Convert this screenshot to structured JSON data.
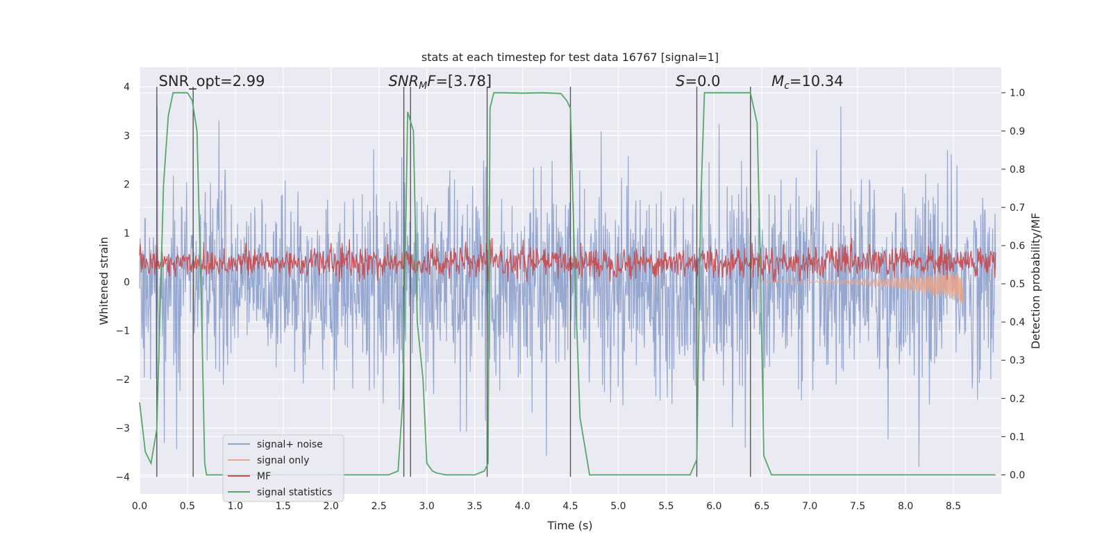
{
  "chart_data": {
    "type": "line",
    "title": "stats at each timestep for test data 16767 [signal=1]",
    "xlabel": "Time (s)",
    "ylabel_left": "Whitened strain",
    "ylabel_right": "Detection probability/MF",
    "xlim": [
      0.0,
      9.0
    ],
    "ylim_left": [
      -4.35,
      4.4
    ],
    "ylim_right": [
      -0.05,
      1.0667
    ],
    "xticks": [
      "0.0",
      "0.5",
      "1.0",
      "1.5",
      "2.0",
      "2.5",
      "3.0",
      "3.5",
      "4.0",
      "4.5",
      "5.0",
      "5.5",
      "6.0",
      "6.5",
      "7.0",
      "7.5",
      "8.0",
      "8.5"
    ],
    "yticks_left": [
      "4",
      "3",
      "2",
      "1",
      "0",
      "−1",
      "−2",
      "−3",
      "−4"
    ],
    "yticks_right": [
      "1.0",
      "0.9",
      "0.8",
      "0.7",
      "0.6",
      "0.5",
      "0.4",
      "0.3",
      "0.2",
      "0.1",
      "0.0"
    ],
    "grid": true,
    "legend_position": "lower-left",
    "legend": [
      "signal+ noise",
      "signal only",
      "MF",
      "signal statistics"
    ],
    "colors": {
      "signal_noise": "#8da0cb",
      "signal_only": "#e8a58b",
      "mf": "#c44e52",
      "statistics": "#55a868",
      "markers": "#555555",
      "background": "#eaeaf2"
    },
    "annotations": [
      {
        "parts": [
          {
            "t": "SNR_opt=2.99",
            "i": false
          }
        ]
      },
      {
        "parts": [
          {
            "t": "SNR",
            "i": true
          },
          {
            "t": "M",
            "i": true,
            "sub": true
          },
          {
            "t": "F",
            "i": true
          },
          {
            "t": "=[3.78]",
            "i": false
          }
        ]
      },
      {
        "parts": [
          {
            "t": "S",
            "i": true
          },
          {
            "t": "=0.0",
            "i": false
          }
        ]
      },
      {
        "parts": [
          {
            "t": "M",
            "i": true
          },
          {
            "t": "c",
            "i": true,
            "sub": true
          },
          {
            "t": "=10.34",
            "i": false
          }
        ]
      }
    ],
    "annotation_x": [
      0.2,
      2.6,
      5.6,
      6.6
    ],
    "vertical_markers": [
      0.18,
      0.56,
      2.76,
      2.83,
      3.63,
      4.5,
      5.82,
      6.38
    ],
    "signal_statistics": {
      "x": [
        0.0,
        0.06,
        0.12,
        0.18,
        0.25,
        0.3,
        0.35,
        0.5,
        0.55,
        0.6,
        0.65,
        0.68,
        0.7,
        0.75,
        0.8,
        1.0,
        2.0,
        2.6,
        2.7,
        2.75,
        2.8,
        2.86,
        2.9,
        2.96,
        3.0,
        3.06,
        3.1,
        3.2,
        3.3,
        3.5,
        3.6,
        3.64,
        3.66,
        3.7,
        3.8,
        4.0,
        4.2,
        4.4,
        4.46,
        4.5,
        4.55,
        4.6,
        4.7,
        5.0,
        5.5,
        5.75,
        5.82,
        5.86,
        5.9,
        6.0,
        6.38,
        6.45,
        6.48,
        6.52,
        6.6,
        7.0,
        8.0,
        8.94
      ],
      "y": [
        0.19,
        0.06,
        0.03,
        0.12,
        0.76,
        0.94,
        1.0,
        1.0,
        0.98,
        0.9,
        0.4,
        0.03,
        0.0,
        0.0,
        0.0,
        0.0,
        0.0,
        0.0,
        0.01,
        0.2,
        0.95,
        0.9,
        0.4,
        0.25,
        0.03,
        0.01,
        0.005,
        0.0,
        0.0,
        0.0,
        0.01,
        0.03,
        0.96,
        1.0,
        1.0,
        0.999,
        1.0,
        0.998,
        0.98,
        0.96,
        0.5,
        0.15,
        0.0,
        0.0,
        0.0,
        0.0,
        0.04,
        0.7,
        1.0,
        1.0,
        1.0,
        0.92,
        0.6,
        0.05,
        0.0,
        0.0,
        0.0,
        0.0
      ]
    },
    "signal_noise": {
      "x_range": [
        0.0,
        8.94
      ],
      "samples": 1800,
      "typical_range": [
        -2.0,
        2.0
      ],
      "peak_range": [
        -4.0,
        3.6
      ]
    },
    "mf": {
      "x_range": [
        0.0,
        8.94
      ],
      "samples": 1400,
      "range": [
        0.0,
        0.9
      ]
    },
    "signal_only": {
      "x_range": [
        6.5,
        8.6
      ],
      "y_min_at_end": -0.5,
      "y_max_at_end": 0.15
    }
  }
}
